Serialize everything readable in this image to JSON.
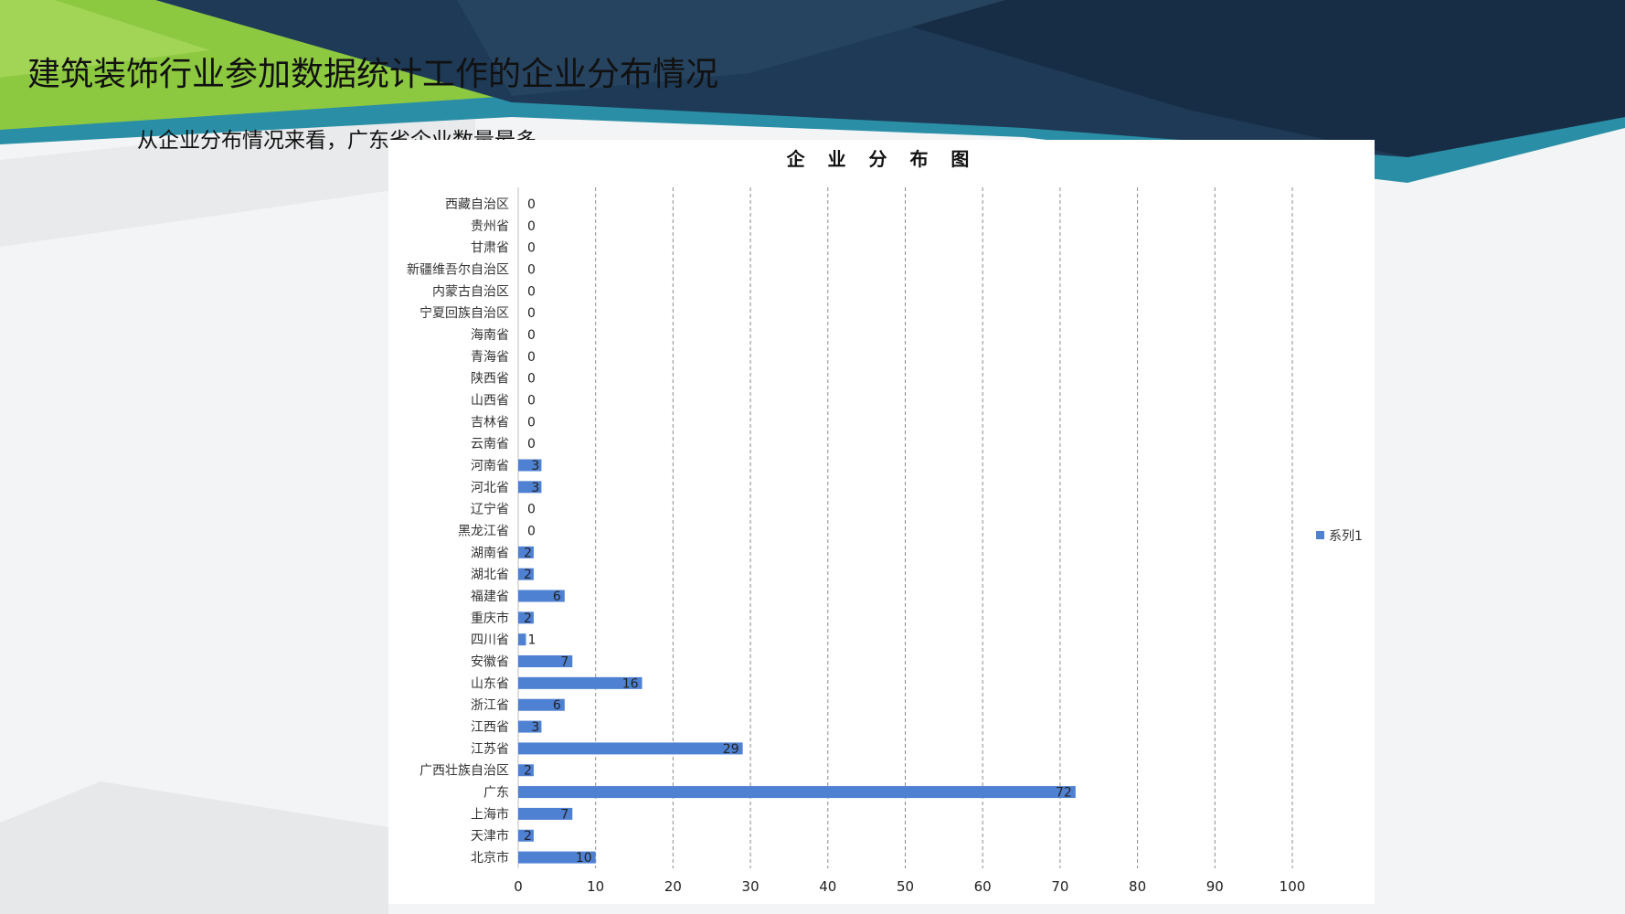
{
  "slide": {
    "title": "建筑装饰行业参加数据统计工作的企业分布情况",
    "subtitle": "从企业分布情况来看，广东省企业数量最多"
  },
  "colors": {
    "bar": "#4f81d2",
    "header_dark": "#1e3a56",
    "header_green": "#8cc840",
    "header_teal": "#2a8fa6"
  },
  "chart_data": {
    "type": "bar",
    "orientation": "horizontal",
    "title": "企 业 分 布 图",
    "categories": [
      "西藏自治区",
      "贵州省",
      "甘肃省",
      "新疆维吾尔自治区",
      "内蒙古自治区",
      "宁夏回族自治区",
      "海南省",
      "青海省",
      "陕西省",
      "山西省",
      "吉林省",
      "云南省",
      "河南省",
      "河北省",
      "辽宁省",
      "黑龙江省",
      "湖南省",
      "湖北省",
      "福建省",
      "重庆市",
      "四川省",
      "安徽省",
      "山东省",
      "浙江省",
      "江西省",
      "江苏省",
      "广西壮族自治区",
      "广东",
      "上海市",
      "天津市",
      "北京市"
    ],
    "series": [
      {
        "name": "系列1",
        "values": [
          0,
          0,
          0,
          0,
          0,
          0,
          0,
          0,
          0,
          0,
          0,
          0,
          3,
          3,
          0,
          0,
          2,
          2,
          6,
          2,
          1,
          7,
          16,
          6,
          3,
          29,
          2,
          72,
          7,
          2,
          10
        ]
      }
    ],
    "xlim": [
      0,
      100
    ],
    "xticks": [
      0,
      10,
      20,
      30,
      40,
      50,
      60,
      70,
      80,
      90,
      100
    ],
    "grid": true,
    "legend": "right"
  }
}
